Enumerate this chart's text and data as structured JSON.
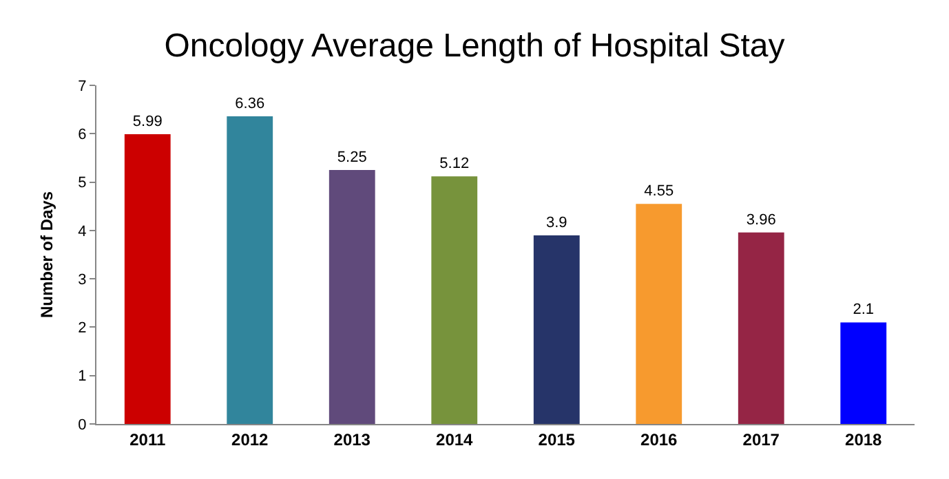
{
  "chart_data": {
    "type": "bar",
    "title": "Oncology Average Length of Hospital Stay",
    "ylabel": "Number of Days",
    "categories": [
      "2011",
      "2012",
      "2013",
      "2014",
      "2015",
      "2016",
      "2017",
      "2018"
    ],
    "values": [
      5.99,
      6.36,
      5.25,
      5.12,
      3.9,
      4.55,
      3.96,
      2.1
    ],
    "colors": [
      "#cc0000",
      "#31859c",
      "#604a7b",
      "#77933c",
      "#263469",
      "#f79a2e",
      "#952545",
      "#0000ff"
    ],
    "ylim": [
      0,
      7
    ],
    "yticks": [
      0,
      1,
      2,
      3,
      4,
      5,
      6,
      7
    ],
    "data_labels": true
  }
}
